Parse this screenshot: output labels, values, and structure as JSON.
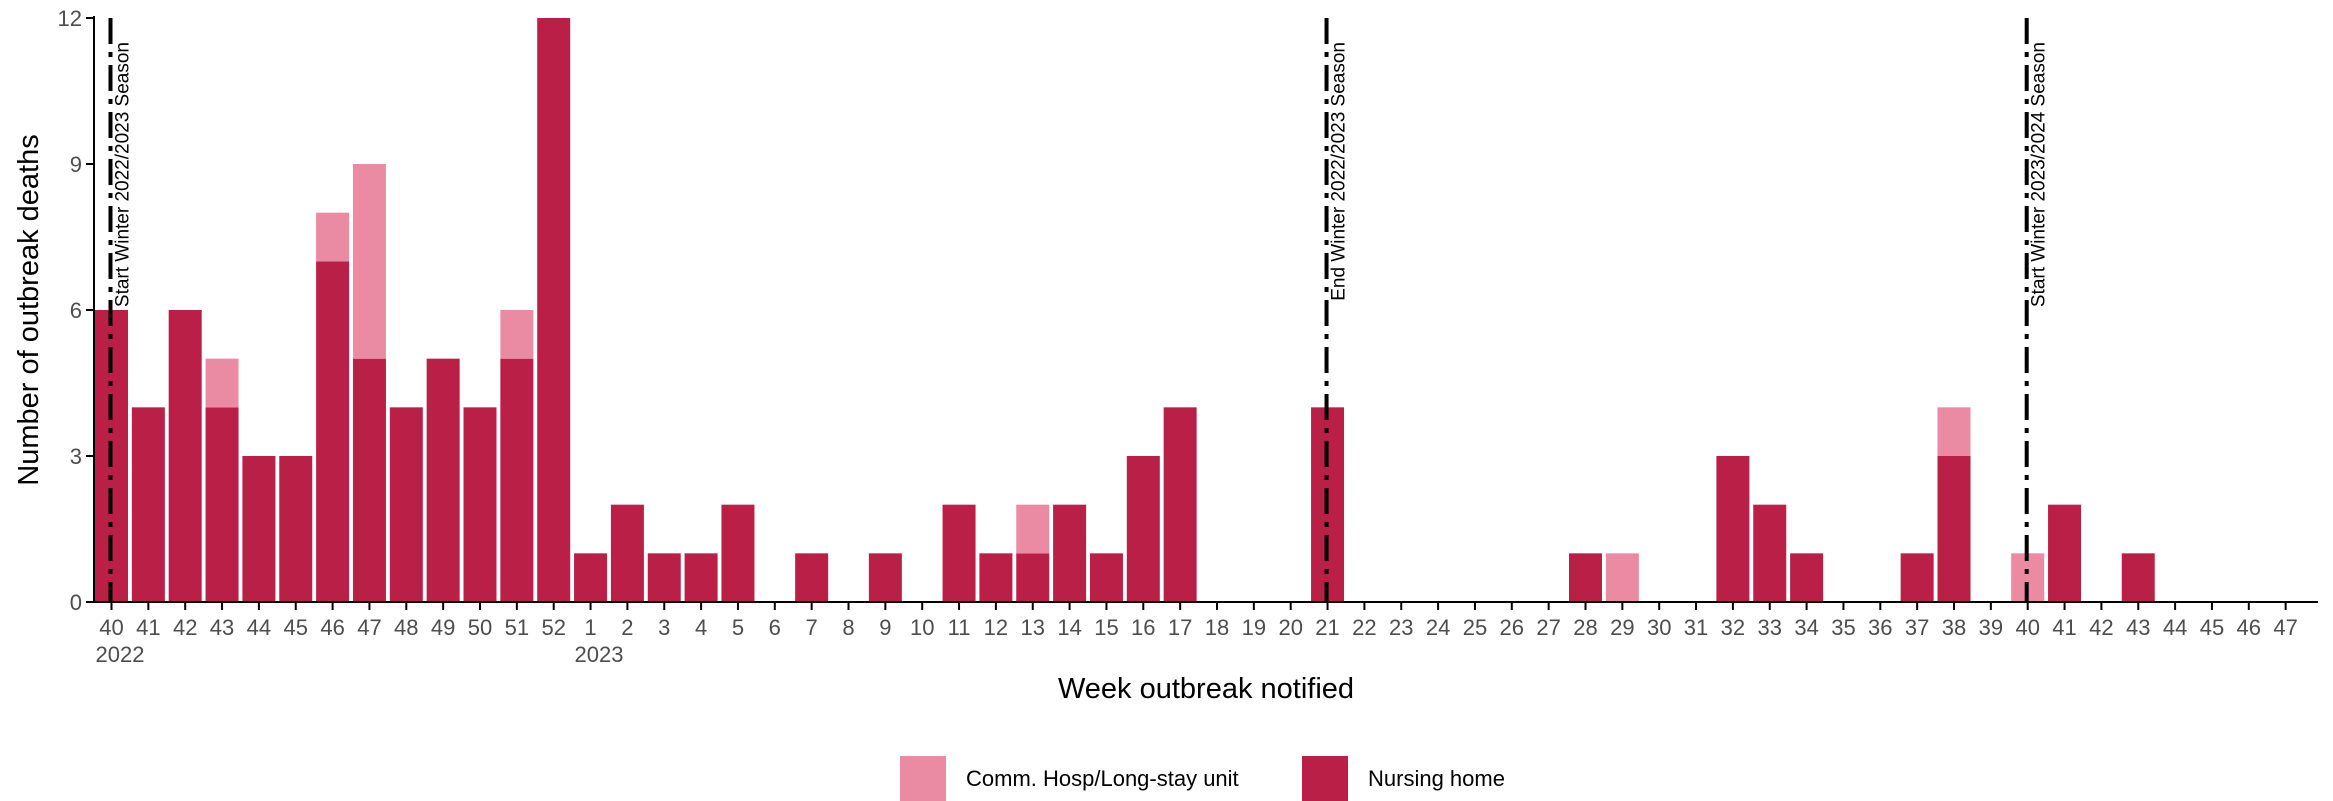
{
  "colors": {
    "nursing_home": "#BA2047",
    "comm_hosp": "#EA8BA3",
    "axis": "#000000",
    "text": "#4d4d4d"
  },
  "chart_data": {
    "type": "bar",
    "stacked": true,
    "xlabel": "Week outbreak notified",
    "ylabel": "Number of outbreak deaths",
    "ylim": [
      0,
      12
    ],
    "yticks": [
      "0",
      "3",
      "6",
      "9",
      "12"
    ],
    "grid": false,
    "legend_position": "bottom",
    "categories": [
      "40",
      "41",
      "42",
      "43",
      "44",
      "45",
      "46",
      "47",
      "48",
      "49",
      "50",
      "51",
      "52",
      "1",
      "2",
      "3",
      "4",
      "5",
      "6",
      "7",
      "8",
      "9",
      "10",
      "11",
      "12",
      "13",
      "14",
      "15",
      "16",
      "17",
      "18",
      "19",
      "20",
      "21",
      "22",
      "23",
      "24",
      "25",
      "26",
      "27",
      "28",
      "29",
      "30",
      "31",
      "32",
      "33",
      "34",
      "35",
      "36",
      "37",
      "38",
      "39",
      "40",
      "41",
      "42",
      "43",
      "44",
      "45",
      "46",
      "47"
    ],
    "year_labels": [
      {
        "index": 0,
        "label": "2022"
      },
      {
        "index": 13,
        "label": "2023"
      }
    ],
    "series": [
      {
        "name": "Nursing home",
        "color_key": "nursing_home",
        "values": [
          6,
          4,
          6,
          4,
          3,
          3,
          7,
          5,
          4,
          5,
          4,
          5,
          12,
          1,
          2,
          1,
          1,
          2,
          0,
          1,
          0,
          1,
          0,
          2,
          1,
          1,
          2,
          1,
          3,
          4,
          0,
          0,
          0,
          4,
          0,
          0,
          0,
          0,
          0,
          0,
          1,
          0,
          0,
          0,
          3,
          2,
          1,
          0,
          0,
          1,
          3,
          0,
          0,
          2,
          0,
          1,
          0,
          0,
          0,
          0
        ]
      },
      {
        "name": "Comm. Hosp/Long-stay unit",
        "color_key": "comm_hosp",
        "values": [
          0,
          0,
          0,
          1,
          0,
          0,
          1,
          4,
          0,
          0,
          0,
          1,
          0,
          0,
          0,
          0,
          0,
          0,
          0,
          0,
          0,
          0,
          0,
          0,
          0,
          1,
          0,
          0,
          0,
          0,
          0,
          0,
          0,
          0,
          0,
          0,
          0,
          0,
          0,
          0,
          0,
          1,
          0,
          0,
          0,
          0,
          0,
          0,
          0,
          0,
          1,
          0,
          1,
          0,
          0,
          0,
          0,
          0,
          0,
          0
        ]
      }
    ],
    "vlines": [
      {
        "index": 0,
        "label": "Start Winter 2022/2023 Season"
      },
      {
        "index": 33,
        "label": "End Winter 2022/2023 Season"
      },
      {
        "index": 52,
        "label": "Start Winter 2023/2024 Season"
      }
    ],
    "legend": [
      {
        "label": "Comm. Hosp/Long-stay unit",
        "color_key": "comm_hosp"
      },
      {
        "label": "Nursing home",
        "color_key": "nursing_home"
      }
    ]
  }
}
